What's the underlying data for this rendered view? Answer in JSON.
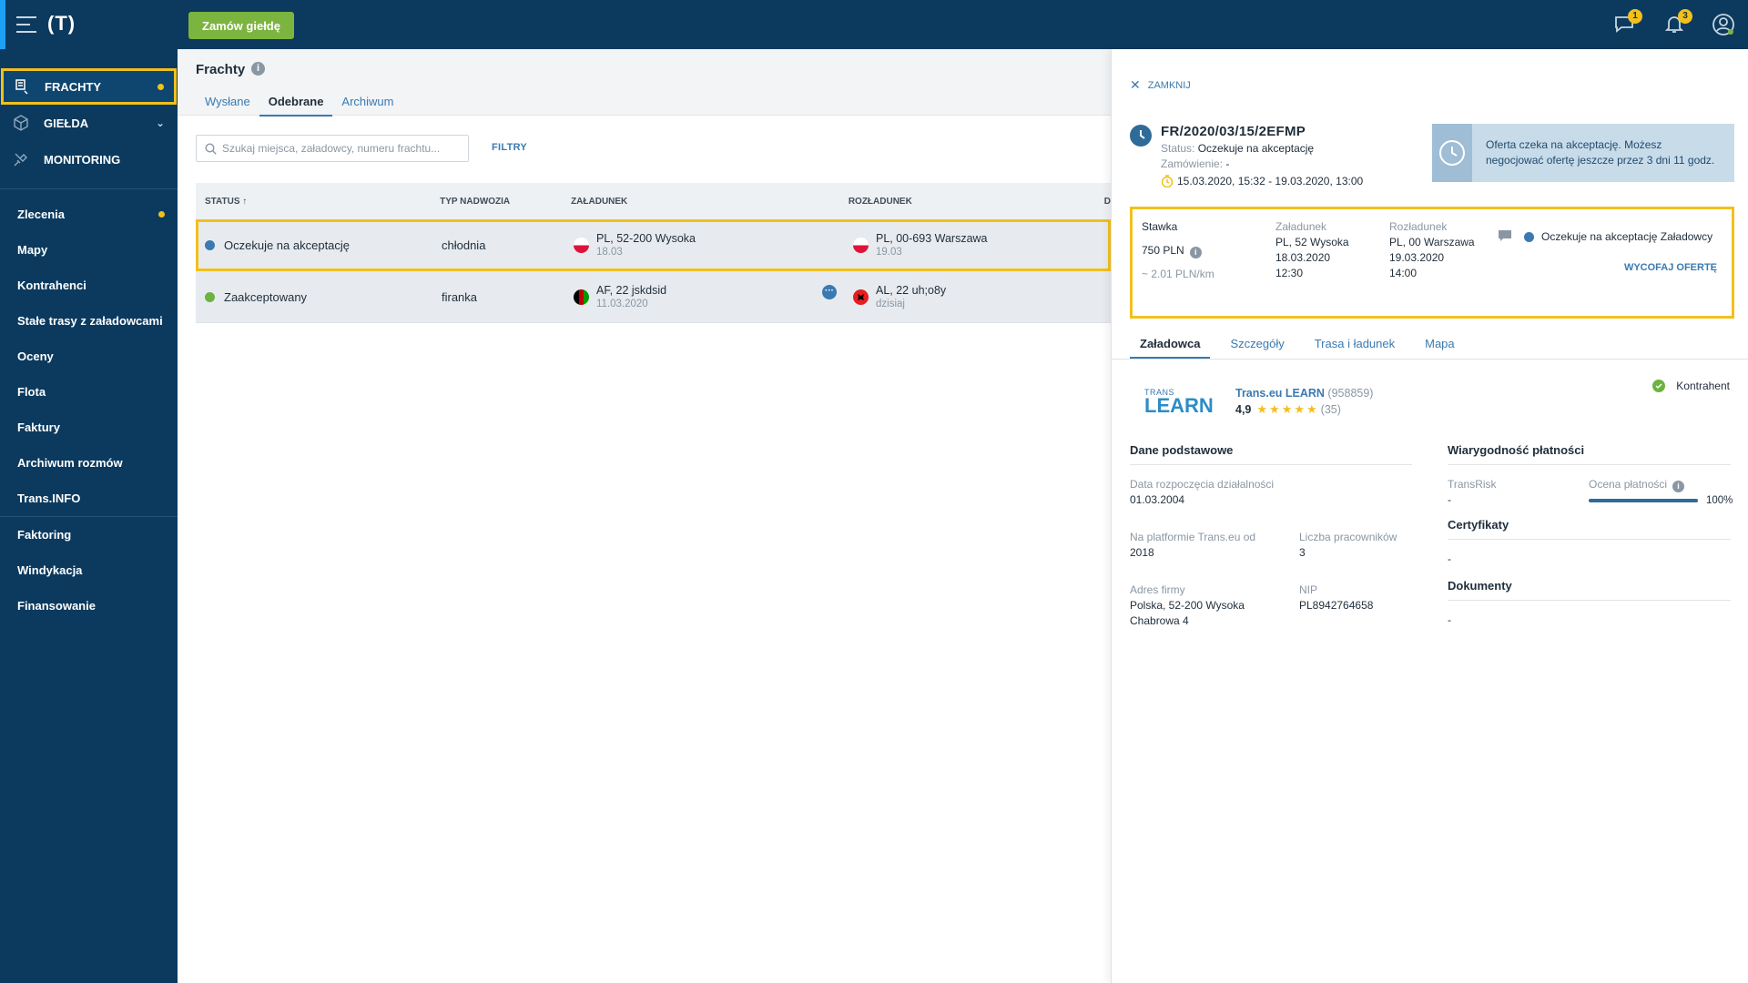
{
  "topbar": {
    "logo": "(T)",
    "order_button": "Zamów giełdę",
    "messages_badge": "1",
    "notifications_badge": "3"
  },
  "sidebar": {
    "main": [
      {
        "label": "FRACHTY",
        "icon": "freight-icon"
      },
      {
        "label": "GIEŁDA",
        "icon": "exchange-box-icon"
      },
      {
        "label": "MONITORING",
        "icon": "satellite-icon"
      }
    ],
    "group1": [
      "Zlecenia",
      "Mapy",
      "Kontrahenci",
      "Stałe trasy z załadowcami",
      "Oceny",
      "Flota",
      "Faktury",
      "Archiwum rozmów",
      "Trans.INFO"
    ],
    "group2": [
      "Faktoring",
      "Windykacja",
      "Finansowanie"
    ]
  },
  "page": {
    "title": "Frachty",
    "tabs": [
      "Wysłane",
      "Odebrane",
      "Archiwum"
    ],
    "search_placeholder": "Szukaj miejsca, załadowcy, numeru frachtu...",
    "filters": "FILTRY"
  },
  "table": {
    "headers": {
      "status": "STATUS ↑",
      "type": "TYP NADWOZIA",
      "load": "ZAŁADUNEK",
      "unload": "ROZŁADUNEK",
      "extra": "D"
    },
    "rows": [
      {
        "status": "Oczekuje na akceptację",
        "type": "chłodnia",
        "load_place": "PL, 52-200 Wysoka",
        "load_date": "18.03",
        "unload_place": "PL, 00-693 Warszawa",
        "unload_date": "19.03"
      },
      {
        "status": "Zaakceptowany",
        "type": "firanka",
        "load_place": "AF, 22 jskdsid",
        "load_date": "11.03.2020",
        "unload_place": "AL, 22 uh;o8y",
        "unload_date": "dzisiaj",
        "more": "···"
      }
    ]
  },
  "panel": {
    "close": "ZAMKNIJ",
    "number": "FR/2020/03/15/2EFMP",
    "status_label": "Status:",
    "status_value": "Oczekuje na akceptację",
    "order_label": "Zamówienie:",
    "order_value": "-",
    "dates": "15.03.2020, 15:32 - 19.03.2020, 13:00",
    "offer_info": "Oferta czeka na akceptację. Możesz negocjować ofertę jeszcze przez 3 dni 11 godz.",
    "rate": {
      "label": "Stawka",
      "value": "750 PLN",
      "per_km": "~ 2.01 PLN/km",
      "load_label": "Załadunek",
      "load_place": "PL, 52 Wysoka",
      "load_date": "18.03.2020",
      "load_time": "12:30",
      "unload_label": "Rozładunek",
      "unload_place": "PL, 00 Warszawa",
      "unload_date": "19.03.2020",
      "unload_time": "14:00",
      "status": "Oczekuje na akceptację Załadowcy",
      "withdraw": "WYCOFAJ OFERTĘ"
    },
    "tabs": [
      "Załadowca",
      "Szczegóły",
      "Trasa i ładunek",
      "Mapa"
    ],
    "company": {
      "logo_top": "TRANS",
      "logo_main": "LEARN",
      "name": "Trans.eu LEARN",
      "id": "(958859)",
      "rating": "4,9",
      "rating_count": "(35)",
      "contractor": "Kontrahent"
    },
    "basic": {
      "title": "Dane podstawowe",
      "start_label": "Data rozpoczęcia działalności",
      "start_value": "01.03.2004",
      "platform_label": "Na platformie Trans.eu od",
      "platform_value": "2018",
      "employees_label": "Liczba pracowników",
      "employees_value": "3",
      "address_label": "Adres firmy",
      "address_line1": "Polska, 52-200 Wysoka",
      "address_line2": "Chabrowa 4",
      "nip_label": "NIP",
      "nip_value": "PL8942764658"
    },
    "payment": {
      "title": "Wiarygodność płatności",
      "transrisk_label": "TransRisk",
      "transrisk_value": "-",
      "score_label": "Ocena płatności",
      "score_value": "100%",
      "score_fraction": 1.0
    },
    "certificates": {
      "title": "Certyfikaty",
      "value": "-"
    },
    "documents": {
      "title": "Dokumenty",
      "value": "-"
    }
  },
  "colors": {
    "accent_yellow": "#f2c01c",
    "navy": "#0b3a5e",
    "green": "#7cb440",
    "link_blue": "#3a7ab0"
  }
}
